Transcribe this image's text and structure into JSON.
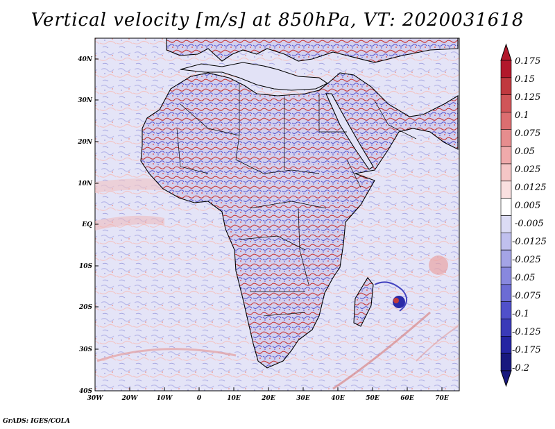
{
  "title": "Vertical velocity [m/s] at 850hPa, VT: 2020031618",
  "credit": "GrADS: IGES/COLA",
  "map": {
    "lat_ticks": [
      "40N",
      "30N",
      "20N",
      "10N",
      "EQ",
      "10S",
      "20S",
      "30S",
      "40S"
    ],
    "lon_ticks": [
      "30W",
      "20W",
      "10W",
      "0",
      "10E",
      "20E",
      "30E",
      "40E",
      "50E",
      "60E",
      "70E"
    ]
  },
  "colorbar": {
    "colors": [
      "#b2182b",
      "#c0393f",
      "#d05558",
      "#dc6e70",
      "#e68d8e",
      "#efaaab",
      "#f5c6c6",
      "#fae0e0",
      "#ffffff",
      "#dcdcf5",
      "#c0c0ee",
      "#a4a4e6",
      "#8888de",
      "#6c6cd4",
      "#5050ca",
      "#3a3ab8",
      "#2424a2",
      "#18187e"
    ],
    "labels": [
      "0.175",
      "0.15",
      "0.125",
      "0.1",
      "0.075",
      "0.05",
      "0.025",
      "0.0125",
      "0.005",
      "-0.005",
      "-0.0125",
      "-0.025",
      "-0.05",
      "-0.075",
      "-0.1",
      "-0.125",
      "-0.175",
      "-0.2"
    ]
  }
}
